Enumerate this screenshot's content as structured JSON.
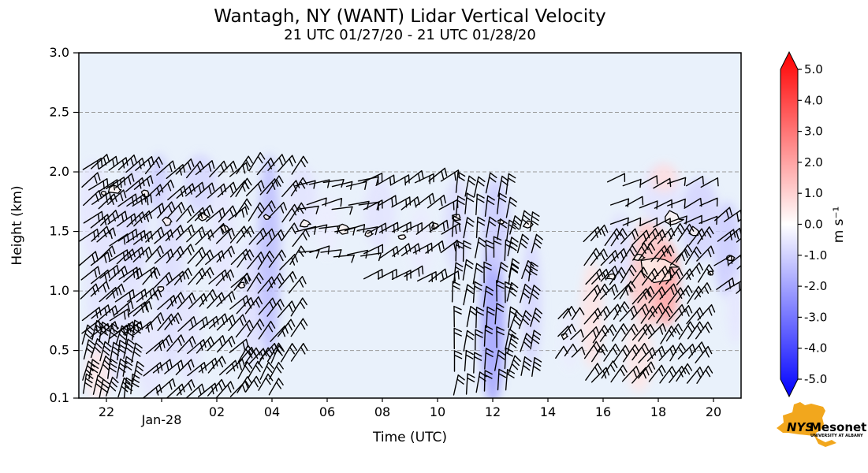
{
  "title": "Wantagh, NY (WANT) Lidar Vertical Velocity",
  "subtitle": "21 UTC 01/27/20 - 21 UTC 01/28/20",
  "chart_data": {
    "type": "heatmap",
    "description": "Time-height cross-section of lidar vertical velocity (shaded, m/s) with wind barbs; t = hours after 21 UTC 01/27/20",
    "title": "Wantagh, NY (WANT) Lidar Vertical Velocity",
    "subtitle": "21 UTC 01/27/20 - 21 UTC 01/28/20",
    "xlabel": "Time (UTC)",
    "ylabel": "Height (km)",
    "x_axis": {
      "start": "21 UTC 01/27/20",
      "end": "21 UTC 01/28/20",
      "range_hours": [
        0,
        24
      ],
      "ticks": [
        {
          "label": "22",
          "t": 1,
          "date": false
        },
        {
          "label": "Jan-28",
          "t": 3,
          "date": true
        },
        {
          "label": "02",
          "t": 5,
          "date": false
        },
        {
          "label": "04",
          "t": 7,
          "date": false
        },
        {
          "label": "06",
          "t": 9,
          "date": false
        },
        {
          "label": "08",
          "t": 11,
          "date": false
        },
        {
          "label": "10",
          "t": 13,
          "date": false
        },
        {
          "label": "12",
          "t": 15,
          "date": false
        },
        {
          "label": "14",
          "t": 17,
          "date": false
        },
        {
          "label": "16",
          "t": 19,
          "date": false
        },
        {
          "label": "18",
          "t": 21,
          "date": false
        },
        {
          "label": "20",
          "t": 23,
          "date": false
        }
      ]
    },
    "y_axis": {
      "min": 0.1,
      "max": 3.0,
      "ticks": [
        {
          "label": "3.0",
          "km": 3.0
        },
        {
          "label": "2.5",
          "km": 2.5
        },
        {
          "label": "2.0",
          "km": 2.0
        },
        {
          "label": "1.5",
          "km": 1.5
        },
        {
          "label": "1.0",
          "km": 1.0
        },
        {
          "label": "0.5",
          "km": 0.5
        },
        {
          "label": "0.1",
          "km": 0.1
        }
      ],
      "gridlines": [
        0.5,
        1.0,
        1.5,
        2.0,
        2.5
      ]
    },
    "colorbar": {
      "label": "m s⁻¹",
      "min": -5.0,
      "max": 5.0,
      "cmap": "blue-white-red",
      "extend": "both",
      "color_top": "#ff0000",
      "color_mid": "#ffffff",
      "color_bottom": "#0000ff",
      "ticks": [
        {
          "label": "5.0",
          "v": 5
        },
        {
          "label": "4.0",
          "v": 4
        },
        {
          "label": "3.0",
          "v": 3
        },
        {
          "label": "2.0",
          "v": 2
        },
        {
          "label": "1.0",
          "v": 1
        },
        {
          "label": "0.0",
          "v": 0
        },
        {
          "label": "-1.0",
          "v": -1
        },
        {
          "label": "-2.0",
          "v": -2
        },
        {
          "label": "-3.0",
          "v": -3
        },
        {
          "label": "-4.0",
          "v": -4
        },
        {
          "label": "-5.0",
          "v": -5
        }
      ]
    },
    "plot_bg": "#e9f1fb",
    "shading_blobs": [
      {
        "t": 0.5,
        "km": 1.7,
        "dt": 0.5,
        "dkm": 0.4,
        "v": -0.5
      },
      {
        "t": 1.3,
        "km": 1.0,
        "dt": 1.0,
        "dkm": 0.8,
        "v": -0.55
      },
      {
        "t": 0.7,
        "km": 0.3,
        "dt": 0.45,
        "dkm": 0.22,
        "v": 0.45
      },
      {
        "t": 2.0,
        "km": 1.6,
        "dt": 0.5,
        "dkm": 0.5,
        "v": -0.7
      },
      {
        "t": 2.9,
        "km": 1.9,
        "dt": 0.35,
        "dkm": 0.25,
        "v": -1.0
      },
      {
        "t": 3.3,
        "km": 1.1,
        "dt": 0.5,
        "dkm": 0.8,
        "v": -0.65
      },
      {
        "t": 2.6,
        "km": 0.45,
        "dt": 0.5,
        "dkm": 0.35,
        "v": -0.5
      },
      {
        "t": 4.0,
        "km": 0.6,
        "dt": 0.4,
        "dkm": 0.4,
        "v": -0.55
      },
      {
        "t": 4.4,
        "km": 1.9,
        "dt": 0.6,
        "dkm": 0.25,
        "v": -0.8
      },
      {
        "t": 5.2,
        "km": 1.4,
        "dt": 0.45,
        "dkm": 0.5,
        "v": -0.5
      },
      {
        "t": 6.3,
        "km": 0.9,
        "dt": 0.5,
        "dkm": 0.55,
        "v": -0.6
      },
      {
        "t": 6.9,
        "km": 1.3,
        "dt": 0.4,
        "dkm": 0.85,
        "v": -1.3
      },
      {
        "t": 8.1,
        "km": 1.75,
        "dt": 0.55,
        "dkm": 0.3,
        "v": -0.55
      },
      {
        "t": 9.0,
        "km": 1.55,
        "dt": 0.4,
        "dkm": 0.25,
        "v": -0.35
      },
      {
        "t": 10.9,
        "km": 1.65,
        "dt": 0.55,
        "dkm": 0.3,
        "v": -0.55
      },
      {
        "t": 12.4,
        "km": 1.4,
        "dt": 0.4,
        "dkm": 0.3,
        "v": -0.4
      },
      {
        "t": 13.7,
        "km": 1.55,
        "dt": 0.45,
        "dkm": 0.4,
        "v": -0.7
      },
      {
        "t": 15.0,
        "km": 0.7,
        "dt": 0.45,
        "dkm": 0.65,
        "v": -1.8
      },
      {
        "t": 15.1,
        "km": 1.55,
        "dt": 0.5,
        "dkm": 0.4,
        "v": -1.0
      },
      {
        "t": 16.4,
        "km": 0.9,
        "dt": 0.35,
        "dkm": 0.55,
        "v": -0.8
      },
      {
        "t": 17.8,
        "km": 0.6,
        "dt": 0.3,
        "dkm": 0.25,
        "v": -0.4
      },
      {
        "t": 18.6,
        "km": 0.8,
        "dt": 0.4,
        "dkm": 0.45,
        "v": 0.55
      },
      {
        "t": 20.3,
        "km": 0.45,
        "dt": 0.5,
        "dkm": 0.3,
        "v": 0.5
      },
      {
        "t": 20.7,
        "km": 1.15,
        "dt": 0.8,
        "dkm": 0.45,
        "v": 1.1
      },
      {
        "t": 21.3,
        "km": 1.05,
        "dt": 0.45,
        "dkm": 0.35,
        "v": 1.7
      },
      {
        "t": 19.6,
        "km": 1.35,
        "dt": 0.45,
        "dkm": 0.3,
        "v": -0.6
      },
      {
        "t": 21.1,
        "km": 1.8,
        "dt": 0.7,
        "dkm": 0.25,
        "v": -0.55
      },
      {
        "t": 21.2,
        "km": 1.95,
        "dt": 0.5,
        "dkm": 0.12,
        "v": 0.6
      },
      {
        "t": 22.5,
        "km": 1.6,
        "dt": 0.7,
        "dkm": 0.35,
        "v": -0.85
      },
      {
        "t": 23.5,
        "km": 1.35,
        "dt": 0.5,
        "dkm": 0.4,
        "v": -1.0
      },
      {
        "t": 23.8,
        "km": 0.85,
        "dt": 0.3,
        "dkm": 0.3,
        "v": -0.5
      }
    ],
    "contours": [
      {
        "t": 0.9,
        "km": 1.82,
        "r": 4
      },
      {
        "t": 1.3,
        "km": 1.85,
        "r": 7
      },
      {
        "t": 2.4,
        "km": 1.82,
        "r": 5
      },
      {
        "t": 3.2,
        "km": 1.58,
        "r": 6
      },
      {
        "t": 3.0,
        "km": 1.02,
        "r": 4
      },
      {
        "t": 4.5,
        "km": 1.62,
        "r": 6
      },
      {
        "t": 5.3,
        "km": 1.52,
        "r": 5
      },
      {
        "t": 5.9,
        "km": 1.05,
        "r": 4
      },
      {
        "t": 6.8,
        "km": 1.62,
        "r": 4
      },
      {
        "t": 8.2,
        "km": 1.56,
        "r": 6
      },
      {
        "t": 9.6,
        "km": 1.52,
        "r": 7
      },
      {
        "t": 10.5,
        "km": 1.48,
        "r": 5
      },
      {
        "t": 11.7,
        "km": 1.45,
        "r": 4
      },
      {
        "t": 12.9,
        "km": 1.54,
        "r": 5
      },
      {
        "t": 13.7,
        "km": 1.62,
        "r": 5
      },
      {
        "t": 15.3,
        "km": 1.58,
        "r": 4
      },
      {
        "t": 16.3,
        "km": 1.56,
        "r": 6
      },
      {
        "t": 17.6,
        "km": 0.62,
        "r": 4
      },
      {
        "t": 18.9,
        "km": 0.5,
        "r": 3
      },
      {
        "t": 19.3,
        "km": 1.12,
        "r": 5
      },
      {
        "t": 20.3,
        "km": 1.28,
        "r": 6
      },
      {
        "t": 21.0,
        "km": 1.2,
        "r": 20
      },
      {
        "t": 21.5,
        "km": 1.6,
        "r": 11
      },
      {
        "t": 22.3,
        "km": 1.5,
        "r": 6
      },
      {
        "t": 22.9,
        "km": 1.15,
        "r": 3
      },
      {
        "t": 23.6,
        "km": 1.28,
        "r": 5
      }
    ],
    "barb_clusters": [
      {
        "t0": 0.1,
        "t1": 2.3,
        "dt": 0.32,
        "z0": 0.62,
        "z1": 2.02,
        "dz": 0.155,
        "dir": 52,
        "feathers": 2,
        "len": 27
      },
      {
        "t0": 0.15,
        "t1": 2.1,
        "dt": 0.3,
        "z0": 0.12,
        "z1": 0.58,
        "dz": 0.15,
        "dir": 12,
        "feathers": 3,
        "len": 25
      },
      {
        "t0": 2.4,
        "t1": 5.6,
        "dt": 0.38,
        "z0": 0.12,
        "z1": 2.0,
        "dz": 0.185,
        "dir": 45,
        "feathers": 2,
        "len": 27
      },
      {
        "t0": 5.7,
        "t1": 7.8,
        "dt": 0.4,
        "z0": 0.4,
        "z1": 2.0,
        "dz": 0.2,
        "dir": 38,
        "feathers": 2,
        "len": 27
      },
      {
        "t0": 5.7,
        "t1": 6.9,
        "dt": 0.4,
        "z0": 0.14,
        "z1": 0.38,
        "dz": 0.12,
        "dir": 30,
        "feathers": 2,
        "len": 24
      },
      {
        "t0": 7.9,
        "t1": 10.3,
        "dt": 0.45,
        "z0": 1.3,
        "z1": 1.95,
        "dz": 0.2,
        "dir": 78,
        "feathers": 1,
        "len": 26
      },
      {
        "t0": 10.4,
        "t1": 13.5,
        "dt": 0.45,
        "z0": 1.1,
        "z1": 1.95,
        "dz": 0.2,
        "dir": 58,
        "feathers": 2,
        "len": 26
      },
      {
        "t0": 13.6,
        "t1": 15.5,
        "dt": 0.38,
        "z0": 0.15,
        "z1": 1.95,
        "dz": 0.185,
        "dir": 6,
        "feathers": 2,
        "len": 26
      },
      {
        "t0": 15.6,
        "t1": 16.7,
        "dt": 0.38,
        "z0": 0.3,
        "z1": 1.6,
        "dz": 0.2,
        "dir": 14,
        "feathers": 3,
        "len": 24
      },
      {
        "t0": 17.3,
        "t1": 18.1,
        "dt": 0.28,
        "z0": 0.45,
        "z1": 0.8,
        "dz": 0.16,
        "dir": 40,
        "feathers": 1,
        "len": 18
      },
      {
        "t0": 18.3,
        "t1": 22.7,
        "dt": 0.34,
        "z0": 0.25,
        "z1": 1.5,
        "dz": 0.165,
        "dir": 38,
        "feathers": 2,
        "len": 26
      },
      {
        "t0": 19.2,
        "t1": 23.0,
        "dt": 0.55,
        "z0": 1.55,
        "z1": 1.9,
        "dz": 0.17,
        "dir": 65,
        "feathers": 1,
        "len": 24
      },
      {
        "t0": 23.1,
        "t1": 23.9,
        "dt": 0.36,
        "z0": 1.0,
        "z1": 1.62,
        "dz": 0.2,
        "dir": 55,
        "feathers": 2,
        "len": 25
      }
    ]
  },
  "branding": {
    "org_prefix": "NYS",
    "org_name": "Mesonet",
    "org_sub": "UNIVERSITY AT ALBANY",
    "gold": "#F2A71D",
    "purple": "#56298c"
  }
}
